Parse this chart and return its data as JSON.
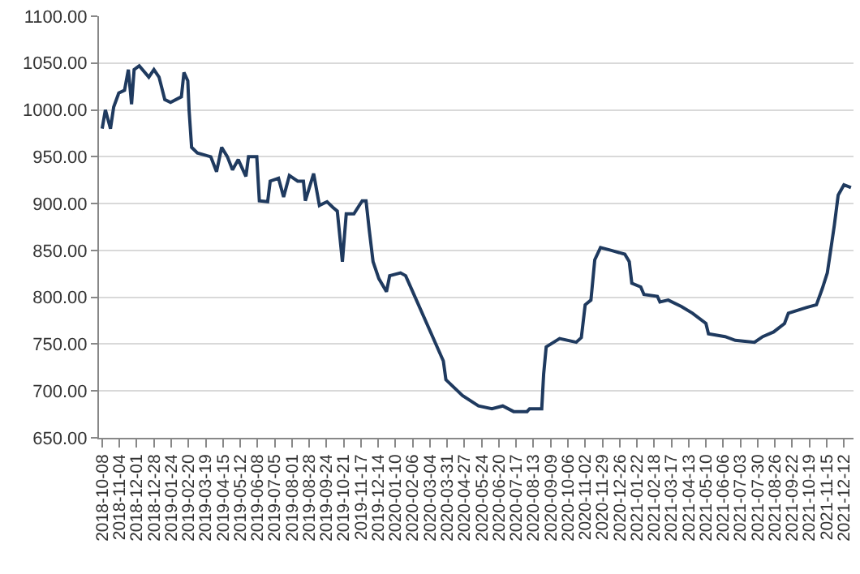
{
  "chart_data": {
    "type": "line",
    "x": [
      "2018-10-08",
      "2018-10-13",
      "2018-10-21",
      "2018-10-26",
      "2018-11-03",
      "2018-11-12",
      "2018-11-18",
      "2018-11-23",
      "2018-11-27",
      "2018-12-05",
      "2018-12-20",
      "2018-12-28",
      "2019-01-05",
      "2019-01-14",
      "2019-01-23",
      "2019-02-09",
      "2019-02-13",
      "2019-02-19",
      "2019-02-21",
      "2019-02-25",
      "2019-03-06",
      "2019-03-27",
      "2019-04-05",
      "2019-04-13",
      "2019-04-22",
      "2019-04-30",
      "2019-05-09",
      "2019-05-21",
      "2019-05-25",
      "2019-06-07",
      "2019-06-11",
      "2019-06-24",
      "2019-06-28",
      "2019-07-11",
      "2019-07-19",
      "2019-07-28",
      "2019-08-10",
      "2019-08-19",
      "2019-08-22",
      "2019-09-04",
      "2019-09-13",
      "2019-09-25",
      "2019-10-04",
      "2019-10-11",
      "2019-10-19",
      "2019-10-25",
      "2019-11-06",
      "2019-11-19",
      "2019-11-25",
      "2019-11-30",
      "2019-12-06",
      "2019-12-15",
      "2019-12-27",
      "2020-01-01",
      "2020-01-18",
      "2020-01-26",
      "2020-03-25",
      "2020-03-29",
      "2020-04-24",
      "2020-05-19",
      "2020-06-09",
      "2020-06-26",
      "2020-07-13",
      "2020-08-03",
      "2020-08-07",
      "2020-08-26",
      "2020-08-29",
      "2020-09-02",
      "2020-09-23",
      "2020-10-19",
      "2020-10-27",
      "2020-11-02",
      "2020-11-11",
      "2020-11-17",
      "2020-11-26",
      "2020-12-13",
      "2021-01-03",
      "2021-01-10",
      "2021-01-14",
      "2021-01-28",
      "2021-02-02",
      "2021-02-23",
      "2021-02-27",
      "2021-03-12",
      "2021-04-02",
      "2021-04-19",
      "2021-05-10",
      "2021-05-14",
      "2021-06-09",
      "2021-06-25",
      "2021-07-25",
      "2021-08-07",
      "2021-08-24",
      "2021-09-10",
      "2021-09-16",
      "2021-10-14",
      "2021-10-30",
      "2021-11-08",
      "2021-11-16",
      "2021-11-21",
      "2021-11-27",
      "2021-12-03",
      "2021-12-12",
      "2021-12-23"
    ],
    "series": [
      {
        "color": "#1f3a5f",
        "values": [
          980,
          1000,
          980,
          1003,
          1018,
          1021,
          1043,
          1006,
          1043,
          1047,
          1035,
          1043,
          1035,
          1011,
          1008,
          1014,
          1040,
          1031,
          1000,
          960,
          954,
          950,
          934,
          960,
          950,
          936,
          947,
          929,
          950,
          950,
          903,
          902,
          924,
          927,
          907,
          930,
          924,
          924,
          903,
          932,
          898,
          902,
          896,
          892,
          838,
          889,
          889,
          903,
          903,
          872,
          838,
          820,
          806,
          823,
          826,
          823,
          732,
          712,
          695,
          684,
          681,
          684,
          678,
          678,
          681,
          681,
          718,
          747,
          756,
          752,
          757,
          792,
          797,
          840,
          853,
          850,
          846,
          838,
          815,
          811,
          803,
          801,
          795,
          797,
          790,
          783,
          772,
          761,
          758,
          754,
          752,
          758,
          763,
          772,
          783,
          789,
          792,
          809,
          826,
          849,
          877,
          909,
          920,
          917
        ]
      }
    ],
    "xlim": [
      "2018-10-03",
      "2021-12-27"
    ],
    "xticks": [
      {
        "value": "2018-10-08",
        "label": "2018-10-08"
      },
      {
        "value": "2018-11-04",
        "label": "2018-11-04"
      },
      {
        "value": "2018-12-01",
        "label": "2018-12-01"
      },
      {
        "value": "2018-12-28",
        "label": "2018-12-28"
      },
      {
        "value": "2019-01-24",
        "label": "2019-01-24"
      },
      {
        "value": "2019-02-20",
        "label": "2019-02-20"
      },
      {
        "value": "2019-03-19",
        "label": "2019-03-19"
      },
      {
        "value": "2019-04-15",
        "label": "2019-04-15"
      },
      {
        "value": "2019-05-12",
        "label": "2019-05-12"
      },
      {
        "value": "2019-06-08",
        "label": "2019-06-08"
      },
      {
        "value": "2019-07-05",
        "label": "2019-07-05"
      },
      {
        "value": "2019-08-01",
        "label": "2019-08-01"
      },
      {
        "value": "2019-08-28",
        "label": "2019-08-28"
      },
      {
        "value": "2019-09-24",
        "label": "2019-09-24"
      },
      {
        "value": "2019-10-21",
        "label": "2019-10-21"
      },
      {
        "value": "2019-11-17",
        "label": "2019-11-17"
      },
      {
        "value": "2019-12-14",
        "label": "2019-12-14"
      },
      {
        "value": "2020-01-10",
        "label": "2020-01-10"
      },
      {
        "value": "2020-02-06",
        "label": "2020-02-06"
      },
      {
        "value": "2020-03-04",
        "label": "2020-03-04"
      },
      {
        "value": "2020-03-31",
        "label": "2020-03-31"
      },
      {
        "value": "2020-04-27",
        "label": "2020-04-27"
      },
      {
        "value": "2020-05-24",
        "label": "2020-05-24"
      },
      {
        "value": "2020-06-20",
        "label": "2020-06-20"
      },
      {
        "value": "2020-07-17",
        "label": "2020-07-17"
      },
      {
        "value": "2020-08-13",
        "label": "2020-08-13"
      },
      {
        "value": "2020-09-09",
        "label": "2020-09-09"
      },
      {
        "value": "2020-10-06",
        "label": "2020-10-06"
      },
      {
        "value": "2020-11-02",
        "label": "2020-11-02"
      },
      {
        "value": "2020-11-29",
        "label": "2020-11-29"
      },
      {
        "value": "2020-12-26",
        "label": "2020-12-26"
      },
      {
        "value": "2021-01-22",
        "label": "2021-01-22"
      },
      {
        "value": "2021-02-18",
        "label": "2021-02-18"
      },
      {
        "value": "2021-03-17",
        "label": "2021-03-17"
      },
      {
        "value": "2021-04-13",
        "label": "2021-04-13"
      },
      {
        "value": "2021-05-10",
        "label": "2021-05-10"
      },
      {
        "value": "2021-06-06",
        "label": "2021-06-06"
      },
      {
        "value": "2021-07-03",
        "label": "2021-07-03"
      },
      {
        "value": "2021-07-30",
        "label": "2021-07-30"
      },
      {
        "value": "2021-08-26",
        "label": "2021-08-26"
      },
      {
        "value": "2021-09-22",
        "label": "2021-09-22"
      },
      {
        "value": "2021-10-19",
        "label": "2021-10-19"
      },
      {
        "value": "2021-11-15",
        "label": "2021-11-15"
      },
      {
        "value": "2021-12-12",
        "label": "2021-12-12"
      }
    ],
    "ylim": [
      650,
      1100
    ],
    "yticks": [
      {
        "value": 650,
        "label": "650.00"
      },
      {
        "value": 700,
        "label": "700.00"
      },
      {
        "value": 750,
        "label": "750.00"
      },
      {
        "value": 800,
        "label": "800.00"
      },
      {
        "value": 850,
        "label": "850.00"
      },
      {
        "value": 900,
        "label": "900.00"
      },
      {
        "value": 950,
        "label": "950.00"
      },
      {
        "value": 1000,
        "label": "1000.00"
      },
      {
        "value": 1050,
        "label": "1050.00"
      },
      {
        "value": 1100,
        "label": "1100.00"
      }
    ],
    "grid": "y"
  }
}
